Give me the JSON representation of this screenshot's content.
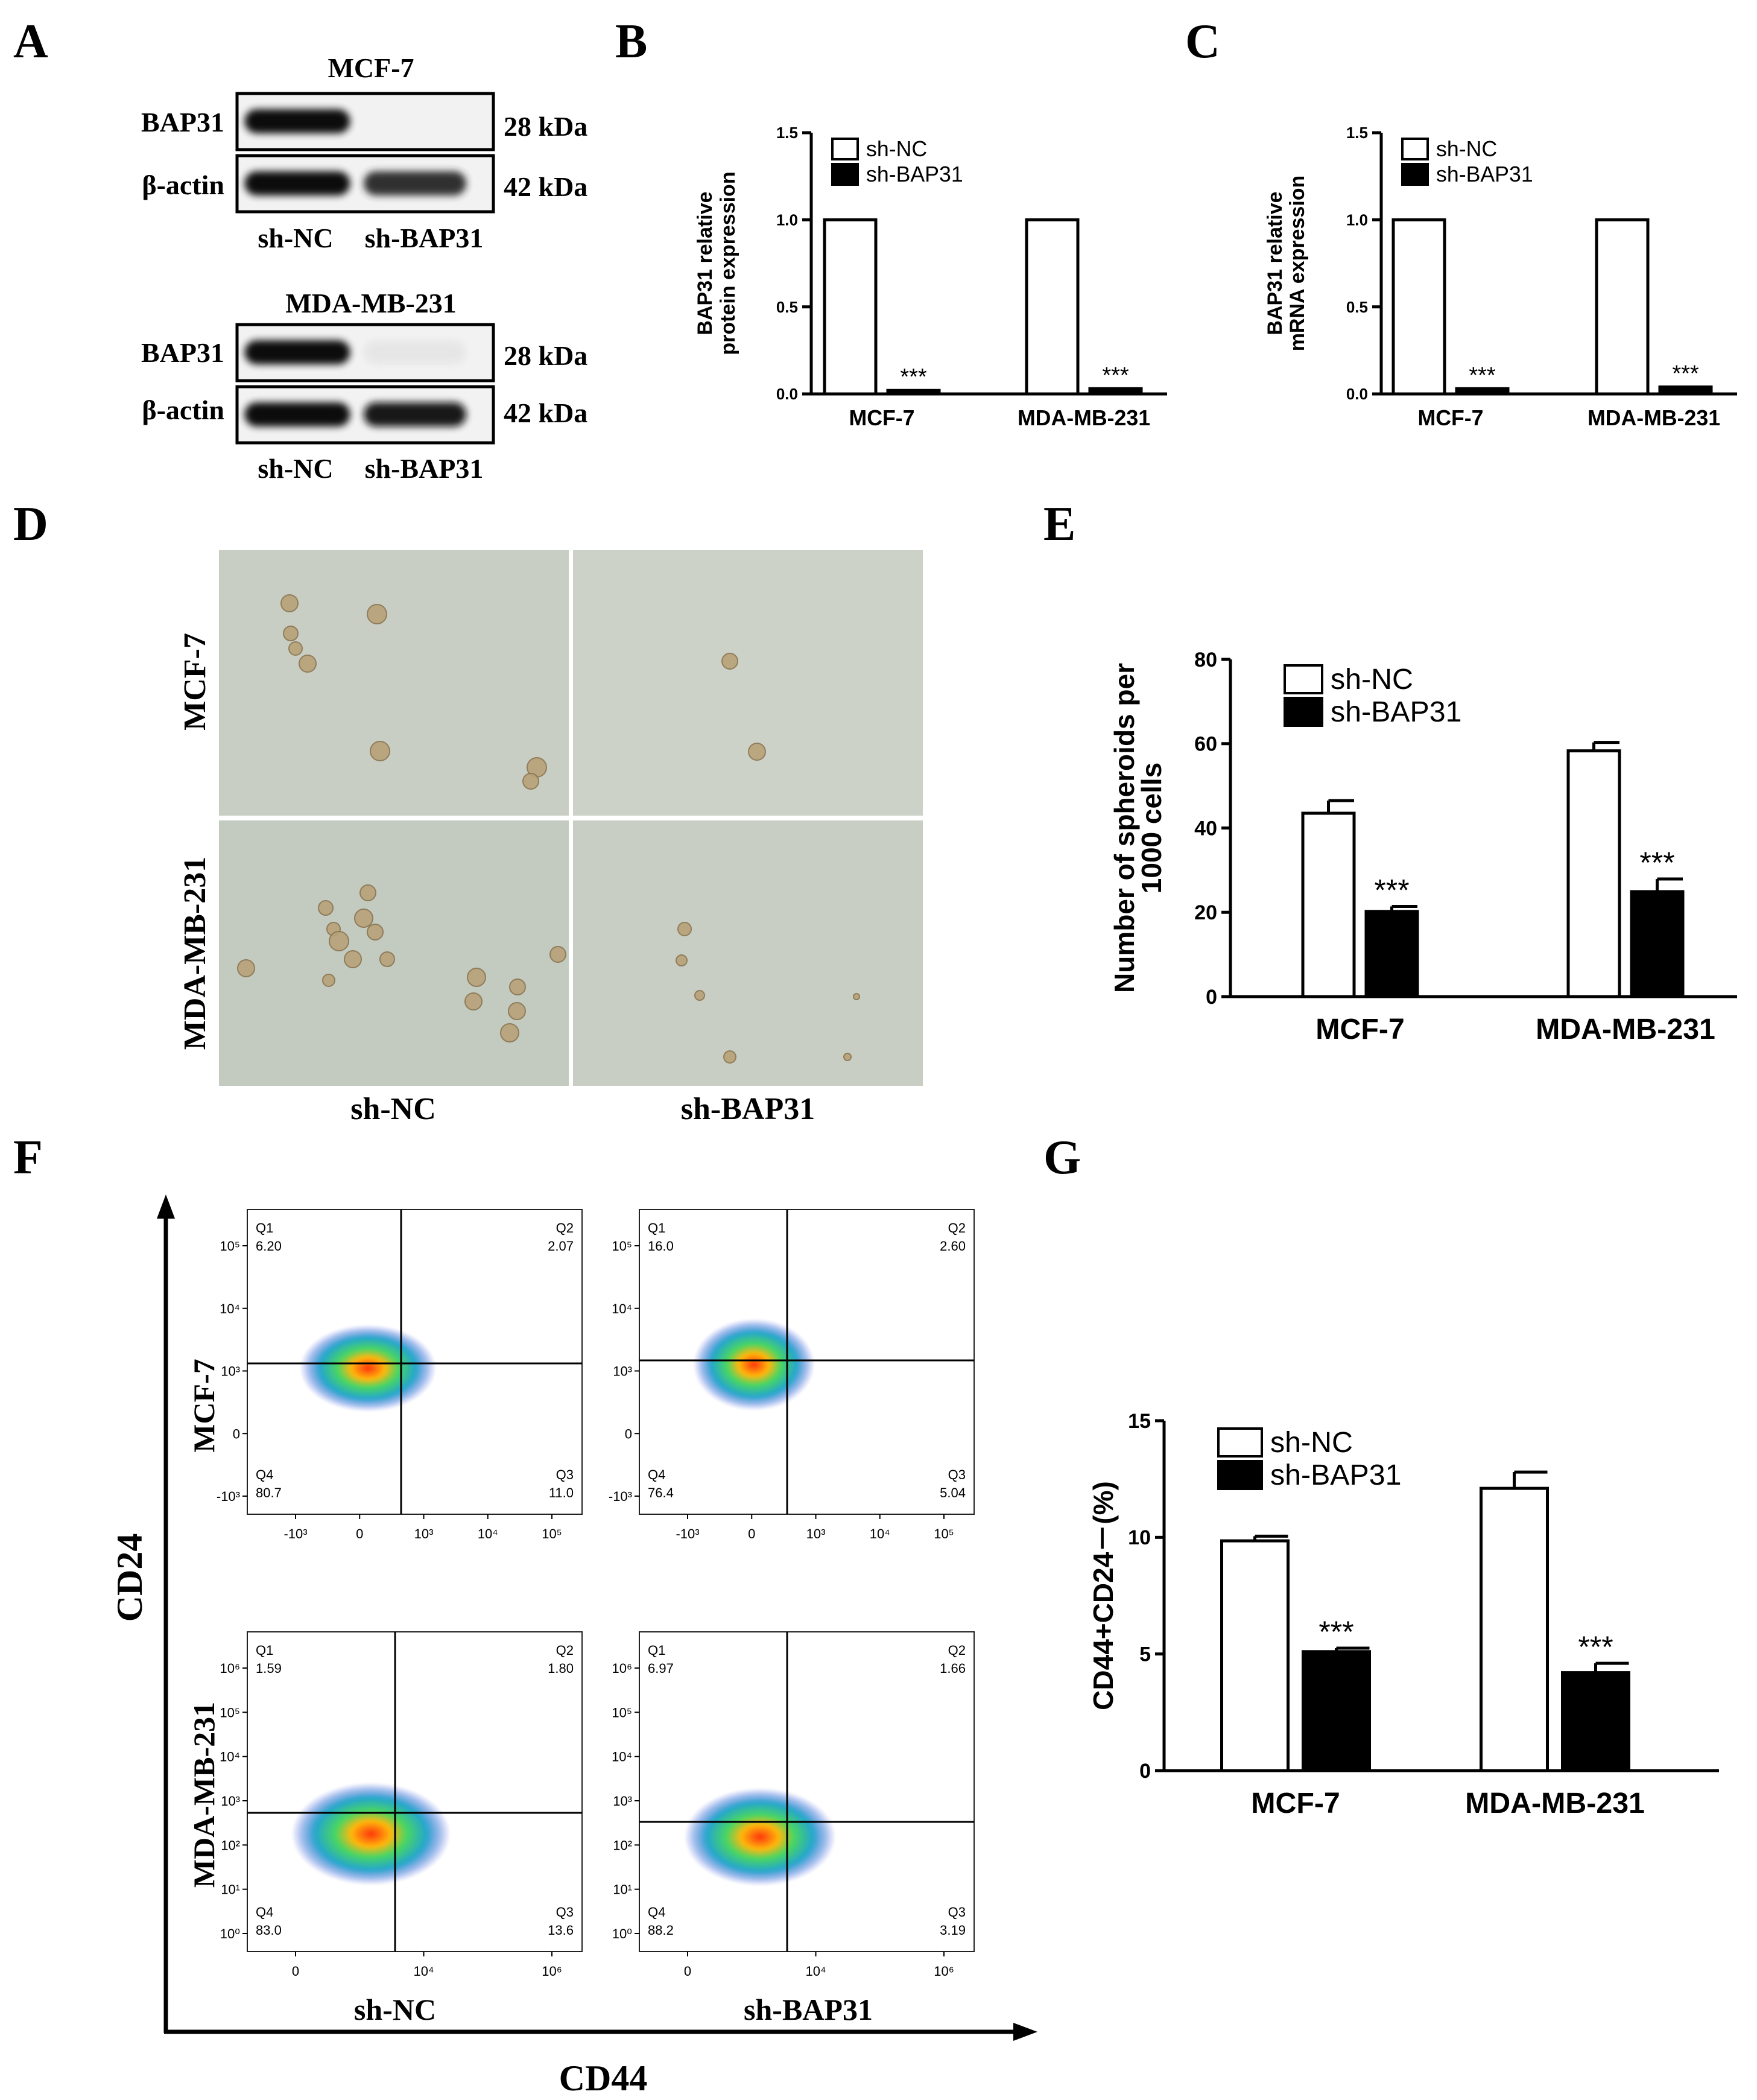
{
  "panels": {
    "A": {
      "letter": "A",
      "blots": [
        {
          "title": "MCF-7",
          "rows": [
            {
              "label": "BAP31",
              "kda": "28 kDa",
              "bands": [
                1.0,
                0.0
              ]
            },
            {
              "label": "β-actin",
              "kda": "42 kDa",
              "bands": [
                1.0,
                0.85
              ]
            }
          ],
          "lanes": [
            "sh-NC",
            "sh-BAP31"
          ]
        },
        {
          "title": "MDA-MB-231",
          "rows": [
            {
              "label": "BAP31",
              "kda": "28 kDa",
              "bands": [
                1.0,
                0.1
              ]
            },
            {
              "label": "β-actin",
              "kda": "42 kDa",
              "bands": [
                1.0,
                0.95
              ]
            }
          ],
          "lanes": [
            "sh-NC",
            "sh-BAP31"
          ]
        }
      ]
    },
    "B": {
      "letter": "B"
    },
    "C": {
      "letter": "C"
    },
    "D": {
      "letter": "D",
      "row_labels": [
        "MCF-7",
        "MDA-MB-231"
      ],
      "col_labels": [
        "sh-NC",
        "sh-BAP31"
      ],
      "colors": {
        "background": "#c9cfc4",
        "spheroid": "#b8a278"
      }
    },
    "E": {
      "letter": "E"
    },
    "F": {
      "letter": "F",
      "y_axis": "CD24",
      "x_axis": "CD44",
      "row_labels": [
        "MCF-7",
        "MDA-MB-231"
      ],
      "col_labels": [
        "sh-NC",
        "sh-BAP31"
      ],
      "plots": [
        {
          "quadrants": {
            "Q1": "6.20",
            "Q2": "2.07",
            "Q3": "11.0",
            "Q4": "80.7"
          },
          "y_ticks": [
            "10⁵",
            "10⁴",
            "10³",
            "0",
            "-10³"
          ],
          "x_ticks": [
            "-10³",
            "0",
            "10³",
            "10⁴",
            "10⁵"
          ]
        },
        {
          "quadrants": {
            "Q1": "16.0",
            "Q2": "2.60",
            "Q3": "5.04",
            "Q4": "76.4"
          },
          "y_ticks": [
            "10⁵",
            "10⁴",
            "10³",
            "0",
            "-10³"
          ],
          "x_ticks": [
            "-10³",
            "0",
            "10³",
            "10⁴",
            "10⁵"
          ]
        },
        {
          "quadrants": {
            "Q1": "1.59",
            "Q2": "1.80",
            "Q3": "13.6",
            "Q4": "83.0"
          },
          "y_ticks": [
            "10⁶",
            "10⁵",
            "10⁴",
            "10³",
            "10²",
            "10¹",
            "10⁰"
          ],
          "x_ticks": [
            "0",
            "10⁴",
            "10⁶"
          ]
        },
        {
          "quadrants": {
            "Q1": "6.97",
            "Q2": "1.66",
            "Q3": "3.19",
            "Q4": "88.2"
          },
          "y_ticks": [
            "10⁶",
            "10⁵",
            "10⁴",
            "10³",
            "10²",
            "10¹",
            "10⁰"
          ],
          "x_ticks": [
            "0",
            "10⁴",
            "10⁶"
          ]
        }
      ]
    },
    "G": {
      "letter": "G"
    }
  },
  "chart_data": [
    {
      "panel": "B",
      "type": "bar",
      "ylabel": "BAP31 relative protein expression",
      "ylim": [
        0,
        1.5
      ],
      "yticks": [
        "0.0",
        "0.5",
        "1.0",
        "1.5"
      ],
      "categories": [
        "MCF-7",
        "MDA-MB-231"
      ],
      "series": [
        {
          "name": "sh-NC",
          "values": [
            1.0,
            1.0
          ],
          "color": "#ffffff"
        },
        {
          "name": "sh-BAP31",
          "values": [
            0.02,
            0.03
          ],
          "color": "#000000"
        }
      ],
      "significance": [
        "***",
        "***"
      ],
      "legend": "top-left"
    },
    {
      "panel": "C",
      "type": "bar",
      "ylabel": "BAP31 relative mRNA expression",
      "ylim": [
        0,
        1.5
      ],
      "yticks": [
        "0.0",
        "0.5",
        "1.0",
        "1.5"
      ],
      "categories": [
        "MCF-7",
        "MDA-MB-231"
      ],
      "series": [
        {
          "name": "sh-NC",
          "values": [
            1.0,
            1.0
          ],
          "color": "#ffffff"
        },
        {
          "name": "sh-BAP31",
          "values": [
            0.03,
            0.04
          ],
          "color": "#000000"
        }
      ],
      "significance": [
        "***",
        "***"
      ],
      "legend": "top-left"
    },
    {
      "panel": "E",
      "type": "bar",
      "ylabel": "Number of spheroids per 1000 cells",
      "ylim": [
        0,
        80
      ],
      "yticks": [
        "0",
        "20",
        "40",
        "60",
        "80"
      ],
      "categories": [
        "MCF-7",
        "MDA-MB-231"
      ],
      "series": [
        {
          "name": "sh-NC",
          "values": [
            43.5,
            58.3
          ],
          "errors": [
            3,
            2
          ],
          "color": "#ffffff"
        },
        {
          "name": "sh-BAP31",
          "values": [
            20.2,
            24.9
          ],
          "errors": [
            1.2,
            3
          ],
          "color": "#000000"
        }
      ],
      "significance": [
        "***",
        "***"
      ],
      "legend": "top-left"
    },
    {
      "panel": "G",
      "type": "bar",
      "ylabel": "CD44+CD24－(%)",
      "ylim": [
        0,
        15
      ],
      "yticks": [
        "0",
        "5",
        "10",
        "15"
      ],
      "categories": [
        "MCF-7",
        "MDA-MB-231"
      ],
      "series": [
        {
          "name": "sh-NC",
          "values": [
            9.85,
            12.1
          ],
          "errors": [
            0.2,
            0.7
          ],
          "color": "#ffffff"
        },
        {
          "name": "sh-BAP31",
          "values": [
            5.1,
            4.2
          ],
          "errors": [
            0.15,
            0.4
          ],
          "color": "#000000"
        }
      ],
      "significance": [
        "***",
        "***"
      ],
      "legend": "top-left"
    }
  ]
}
